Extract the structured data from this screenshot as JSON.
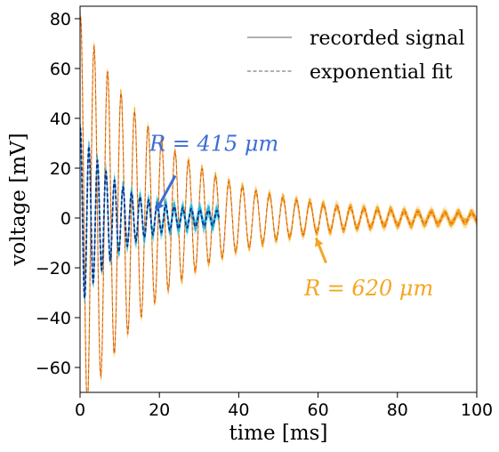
{
  "chart_data": {
    "type": "line",
    "title": "",
    "xlabel": "time [ms]",
    "ylabel": "voltage [mV]",
    "xlim": [
      0,
      100
    ],
    "ylim": [
      -70,
      85
    ],
    "xticks": [
      "0",
      "20",
      "40",
      "60",
      "80",
      "100"
    ],
    "yticks": [
      "−60",
      "−40",
      "−20",
      "0",
      "20",
      "40",
      "60",
      "80"
    ],
    "xtick_values": [
      0,
      20,
      40,
      60,
      80,
      100
    ],
    "ytick_values": [
      -60,
      -40,
      -20,
      0,
      20,
      40,
      60,
      80
    ],
    "grid": false,
    "legend_position": "top-right",
    "legend": [
      {
        "label": "recorded signal",
        "style": "solid",
        "color": "#808080"
      },
      {
        "label": "exponential fit",
        "style": "dashed",
        "color": "#808080"
      }
    ],
    "series": [
      {
        "id": "r620",
        "color": "#f5a623",
        "t_range": [
          0,
          100
        ],
        "model": {
          "amplitude": 80,
          "decay_ms": 21,
          "period_ms": 3.4,
          "floor": 1.2
        },
        "recorded_spread": 1.8
      },
      {
        "id": "r415",
        "color": "#1fb6d6",
        "fit_color": "#1a2a8c",
        "t_range": [
          0,
          35
        ],
        "model": {
          "amplitude": 34,
          "decay_ms": 9,
          "period_ms": 2.15,
          "floor": 2.2
        },
        "recorded_spread": 2.4
      }
    ],
    "annotations": [
      {
        "text": "R = 415 μm",
        "color": "#3b6fd4",
        "arrow_from": [
          24,
          17
        ],
        "arrow_to": [
          19.2,
          3
        ],
        "label_at": [
          17.5,
          27
        ]
      },
      {
        "text": "R = 620 μm",
        "color": "#f5a623",
        "arrow_from": [
          62,
          -18
        ],
        "arrow_to": [
          59.5,
          -8
        ],
        "label_at": [
          56.5,
          -31
        ]
      }
    ]
  }
}
